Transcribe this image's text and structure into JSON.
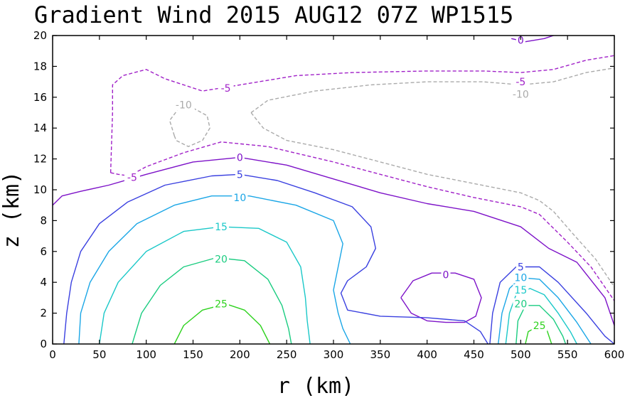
{
  "chart_data": {
    "type": "contour",
    "title": "Gradient Wind 2015 AUG12 07Z  WP1515",
    "xlabel": "r (km)",
    "ylabel": "z (km)",
    "xlim": [
      0,
      600
    ],
    "ylim": [
      0,
      20
    ],
    "xticks": [
      "0",
      "50",
      "100",
      "150",
      "200",
      "250",
      "300",
      "350",
      "400",
      "450",
      "500",
      "550",
      "600"
    ],
    "yticks": [
      "0",
      "2",
      "4",
      "6",
      "8",
      "10",
      "12",
      "14",
      "16",
      "18",
      "20"
    ],
    "grid": false,
    "levels": [
      {
        "value": -10,
        "label": "-10",
        "color": "#aaaaaa",
        "style": "dashed",
        "labels_at": [
          [
            140,
            15.5
          ],
          [
            500,
            16.2
          ]
        ],
        "lines": [
          [
            [
              130,
              13.5
            ],
            [
              125,
              14.5
            ],
            [
              135,
              15.3
            ],
            [
              150,
              15.3
            ],
            [
              165,
              14.8
            ],
            [
              168,
              14.0
            ],
            [
              160,
              13.2
            ],
            [
              145,
              12.8
            ],
            [
              132,
              13.2
            ],
            [
              130,
              13.5
            ]
          ],
          [
            [
              212,
              15.0
            ],
            [
              230,
              15.8
            ],
            [
              280,
              16.4
            ],
            [
              340,
              16.8
            ],
            [
              400,
              17.0
            ],
            [
              460,
              17.0
            ],
            [
              500,
              16.8
            ],
            [
              535,
              17.0
            ],
            [
              570,
              17.6
            ],
            [
              600,
              17.9
            ]
          ],
          [
            [
              212,
              15.0
            ],
            [
              225,
              14.0
            ],
            [
              250,
              13.2
            ],
            [
              300,
              12.6
            ],
            [
              350,
              11.8
            ],
            [
              400,
              11.0
            ],
            [
              450,
              10.4
            ],
            [
              500,
              9.8
            ],
            [
              520,
              9.3
            ],
            [
              535,
              8.6
            ],
            [
              555,
              7.2
            ],
            [
              580,
              5.5
            ],
            [
              600,
              3.7
            ]
          ]
        ]
      },
      {
        "value": -5,
        "label": "-5",
        "color": "#a020c8",
        "style": "dashed",
        "labels_at": [
          [
            185,
            16.6
          ],
          [
            500,
            17.0
          ],
          [
            85,
            10.8
          ]
        ],
        "lines": [
          [
            [
              62,
              11.1
            ],
            [
              70,
              11.0
            ],
            [
              82,
              10.9
            ],
            [
              100,
              11.5
            ],
            [
              140,
              12.4
            ],
            [
              180,
              13.1
            ],
            [
              230,
              12.8
            ],
            [
              300,
              11.8
            ],
            [
              350,
              11.0
            ],
            [
              400,
              10.2
            ],
            [
              450,
              9.5
            ],
            [
              500,
              8.9
            ],
            [
              520,
              8.4
            ],
            [
              530,
              7.8
            ],
            [
              550,
              6.6
            ],
            [
              575,
              5.0
            ],
            [
              600,
              2.8
            ]
          ],
          [
            [
              62,
              11.1
            ],
            [
              63,
              13.0
            ],
            [
              64,
              15.0
            ],
            [
              64,
              16.8
            ],
            [
              75,
              17.4
            ],
            [
              100,
              17.8
            ],
            [
              120,
              17.2
            ],
            [
              160,
              16.4
            ],
            [
              210,
              16.9
            ],
            [
              260,
              17.4
            ],
            [
              320,
              17.6
            ],
            [
              400,
              17.7
            ],
            [
              460,
              17.7
            ],
            [
              500,
              17.6
            ],
            [
              535,
              17.8
            ],
            [
              570,
              18.4
            ],
            [
              600,
              18.7
            ]
          ]
        ]
      },
      {
        "value": 0,
        "label": "0",
        "color": "#7d12c8",
        "style": "solid",
        "labels_at": [
          [
            200,
            12.1
          ],
          [
            420,
            4.5
          ],
          [
            500,
            19.7
          ]
        ],
        "lines": [
          [
            [
              0,
              9.0
            ],
            [
              10,
              9.6
            ],
            [
              30,
              9.9
            ],
            [
              60,
              10.3
            ],
            [
              100,
              11.0
            ],
            [
              150,
              11.8
            ],
            [
              200,
              12.1
            ],
            [
              250,
              11.6
            ],
            [
              300,
              10.7
            ],
            [
              350,
              9.8
            ],
            [
              400,
              9.1
            ],
            [
              450,
              8.6
            ],
            [
              500,
              7.6
            ],
            [
              530,
              6.2
            ],
            [
              560,
              5.3
            ],
            [
              590,
              3.0
            ],
            [
              600,
              1.2
            ]
          ],
          [
            [
              372,
              3.0
            ],
            [
              385,
              4.1
            ],
            [
              405,
              4.6
            ],
            [
              430,
              4.6
            ],
            [
              450,
              4.2
            ],
            [
              458,
              3.0
            ],
            [
              452,
              1.8
            ],
            [
              440,
              1.4
            ],
            [
              420,
              1.4
            ],
            [
              400,
              1.5
            ],
            [
              383,
              2.0
            ],
            [
              372,
              3.0
            ]
          ],
          [
            [
              490,
              19.8
            ],
            [
              505,
              19.6
            ],
            [
              525,
              19.8
            ],
            [
              535,
              20.0
            ]
          ]
        ]
      },
      {
        "value": 5,
        "label": "5",
        "color": "#3a40e0",
        "style": "solid",
        "labels_at": [
          [
            200,
            11.0
          ],
          [
            500,
            5.0
          ]
        ],
        "lines": [
          [
            [
              12,
              0
            ],
            [
              15,
              2
            ],
            [
              20,
              4
            ],
            [
              30,
              6
            ],
            [
              50,
              7.8
            ],
            [
              80,
              9.2
            ],
            [
              120,
              10.3
            ],
            [
              170,
              10.9
            ],
            [
              200,
              11.0
            ],
            [
              240,
              10.6
            ],
            [
              280,
              9.8
            ],
            [
              320,
              8.9
            ],
            [
              340,
              7.6
            ],
            [
              345,
              6.2
            ],
            [
              335,
              5.0
            ],
            [
              315,
              4.1
            ],
            [
              308,
              3.3
            ],
            [
              315,
              2.2
            ],
            [
              350,
              1.8
            ],
            [
              400,
              1.7
            ],
            [
              440,
              1.5
            ],
            [
              457,
              0.8
            ],
            [
              465,
              0
            ]
          ],
          [
            [
              467,
              0
            ],
            [
              470,
              2.0
            ],
            [
              478,
              4.0
            ],
            [
              495,
              5.0
            ],
            [
              520,
              5.0
            ],
            [
              540,
              4.0
            ],
            [
              570,
              2.0
            ],
            [
              590,
              0.5
            ],
            [
              600,
              0
            ]
          ]
        ]
      },
      {
        "value": 10,
        "label": "10",
        "color": "#1aa6e6",
        "style": "solid",
        "labels_at": [
          [
            200,
            9.5
          ],
          [
            500,
            4.3
          ]
        ],
        "lines": [
          [
            [
              28,
              0
            ],
            [
              30,
              2
            ],
            [
              40,
              4
            ],
            [
              60,
              6
            ],
            [
              90,
              7.8
            ],
            [
              130,
              9.0
            ],
            [
              170,
              9.6
            ],
            [
              210,
              9.6
            ],
            [
              260,
              9.0
            ],
            [
              300,
              8.0
            ],
            [
              310,
              6.5
            ],
            [
              305,
              5.0
            ],
            [
              300,
              3.5
            ],
            [
              305,
              2.0
            ],
            [
              310,
              1.0
            ],
            [
              318,
              0
            ]
          ],
          [
            [
              476,
              0
            ],
            [
              480,
              2.0
            ],
            [
              488,
              3.6
            ],
            [
              500,
              4.3
            ],
            [
              520,
              4.2
            ],
            [
              540,
              3.0
            ],
            [
              560,
              1.4
            ],
            [
              575,
              0
            ]
          ]
        ]
      },
      {
        "value": 15,
        "label": "15",
        "color": "#1ac8c8",
        "style": "solid",
        "labels_at": [
          [
            180,
            7.6
          ],
          [
            500,
            3.5
          ]
        ],
        "lines": [
          [
            [
              50,
              0
            ],
            [
              55,
              2
            ],
            [
              70,
              4
            ],
            [
              100,
              6
            ],
            [
              140,
              7.3
            ],
            [
              180,
              7.6
            ],
            [
              220,
              7.5
            ],
            [
              250,
              6.6
            ],
            [
              265,
              5.0
            ],
            [
              270,
              3.0
            ],
            [
              272,
              1.5
            ],
            [
              275,
              0
            ]
          ],
          [
            [
              484,
              0
            ],
            [
              488,
              2.0
            ],
            [
              495,
              3.2
            ],
            [
              510,
              3.6
            ],
            [
              525,
              3.2
            ],
            [
              540,
              2.0
            ],
            [
              553,
              0.8
            ],
            [
              560,
              0
            ]
          ]
        ]
      },
      {
        "value": 20,
        "label": "20",
        "color": "#1acc80",
        "style": "solid",
        "labels_at": [
          [
            180,
            5.5
          ],
          [
            500,
            2.6
          ]
        ],
        "lines": [
          [
            [
              85,
              0
            ],
            [
              95,
              2
            ],
            [
              115,
              3.8
            ],
            [
              140,
              5.0
            ],
            [
              175,
              5.6
            ],
            [
              205,
              5.4
            ],
            [
              230,
              4.2
            ],
            [
              245,
              2.5
            ],
            [
              252,
              1.0
            ],
            [
              255,
              0
            ]
          ],
          [
            [
              495,
              0
            ],
            [
              497,
              1.5
            ],
            [
              505,
              2.5
            ],
            [
              520,
              2.5
            ],
            [
              535,
              1.6
            ],
            [
              545,
              0.5
            ],
            [
              548,
              0
            ]
          ]
        ]
      },
      {
        "value": 25,
        "label": "25",
        "color": "#2ed21e",
        "style": "solid",
        "labels_at": [
          [
            180,
            2.6
          ],
          [
            520,
            1.2
          ]
        ],
        "lines": [
          [
            [
              130,
              0
            ],
            [
              140,
              1.2
            ],
            [
              160,
              2.2
            ],
            [
              185,
              2.6
            ],
            [
              205,
              2.2
            ],
            [
              222,
              1.2
            ],
            [
              232,
              0
            ]
          ],
          [
            [
              505,
              0
            ],
            [
              508,
              0.8
            ],
            [
              520,
              1.2
            ],
            [
              528,
              0.9
            ],
            [
              533,
              0
            ]
          ]
        ]
      }
    ]
  }
}
